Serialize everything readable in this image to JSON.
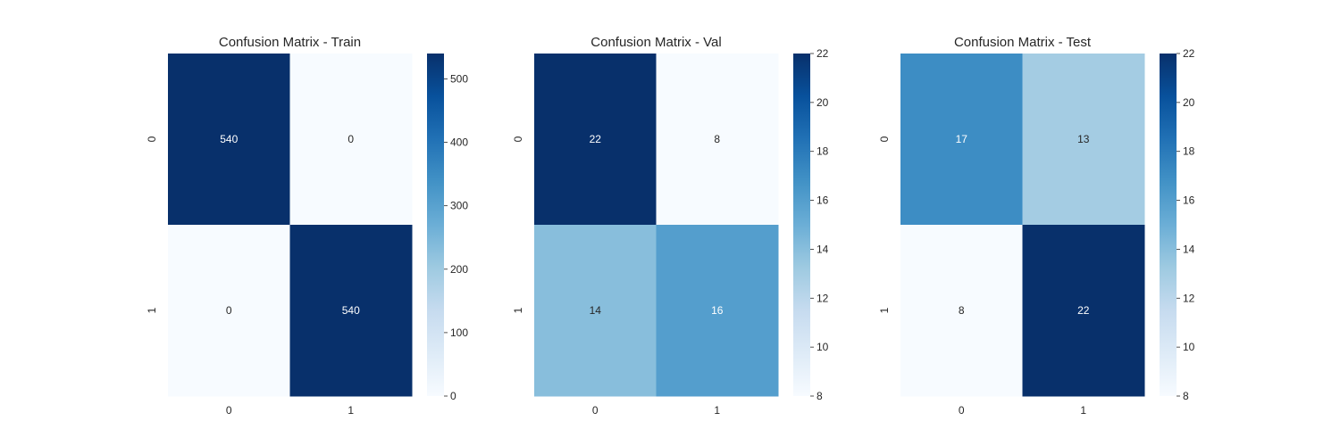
{
  "chart_data": [
    {
      "type": "heatmap",
      "title": "Confusion Matrix - Train",
      "xlabel": "",
      "ylabel": "",
      "x_categories": [
        "0",
        "1"
      ],
      "y_categories": [
        "0",
        "1"
      ],
      "values": [
        [
          540,
          0
        ],
        [
          0,
          540
        ]
      ],
      "color_range": [
        0,
        540
      ],
      "colormap": "Blues",
      "colorbar_ticks": [
        0,
        100,
        200,
        300,
        400,
        500
      ],
      "grid": false
    },
    {
      "type": "heatmap",
      "title": "Confusion Matrix - Val",
      "xlabel": "",
      "ylabel": "",
      "x_categories": [
        "0",
        "1"
      ],
      "y_categories": [
        "0",
        "1"
      ],
      "values": [
        [
          22,
          8
        ],
        [
          14,
          16
        ]
      ],
      "color_range": [
        8,
        22
      ],
      "colormap": "Blues",
      "colorbar_ticks": [
        8,
        10,
        12,
        14,
        16,
        18,
        20,
        22
      ],
      "grid": false
    },
    {
      "type": "heatmap",
      "title": "Confusion Matrix - Test",
      "xlabel": "",
      "ylabel": "",
      "x_categories": [
        "0",
        "1"
      ],
      "y_categories": [
        "0",
        "1"
      ],
      "values": [
        [
          17,
          13
        ],
        [
          8,
          22
        ]
      ],
      "color_range": [
        8,
        22
      ],
      "colormap": "Blues",
      "colorbar_ticks": [
        8,
        10,
        12,
        14,
        16,
        18,
        20,
        22
      ],
      "grid": false
    }
  ]
}
